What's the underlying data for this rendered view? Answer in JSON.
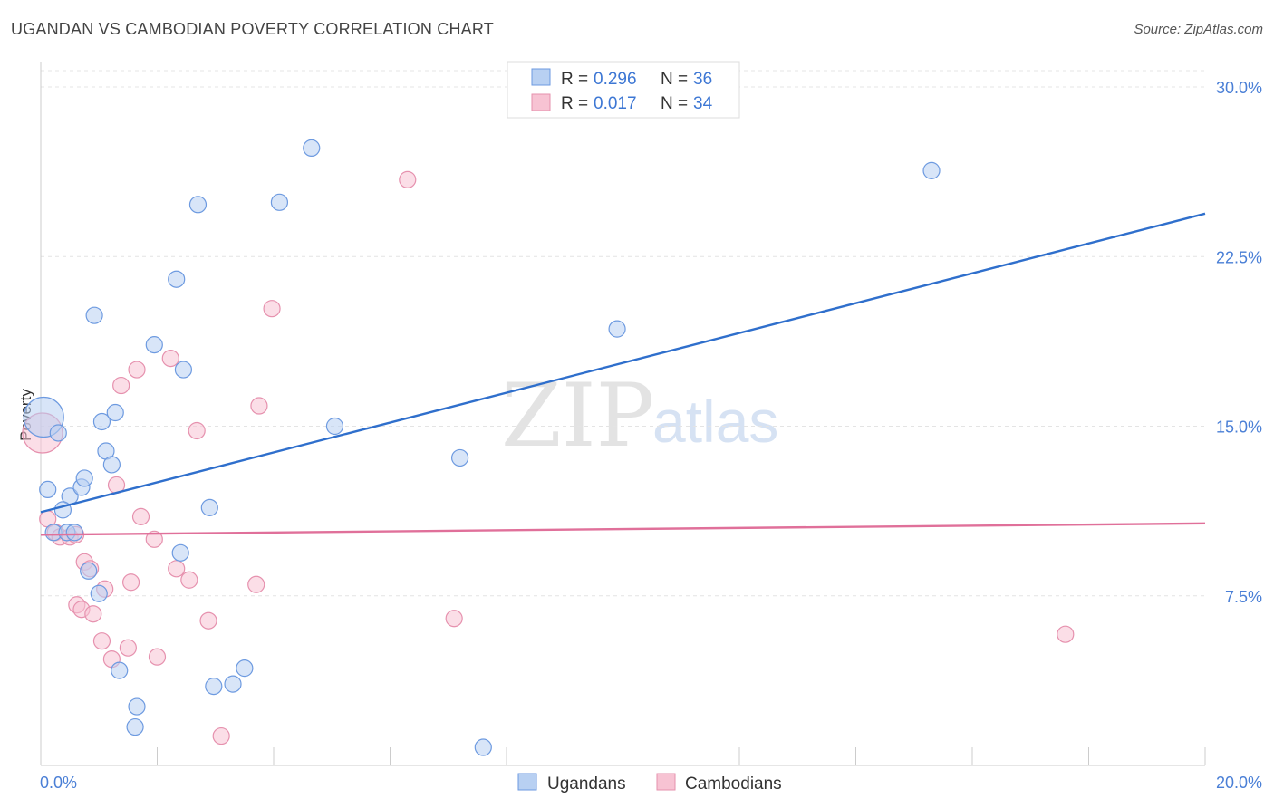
{
  "title": "UGANDAN VS CAMBODIAN POVERTY CORRELATION CHART",
  "source": "Source: ZipAtlas.com",
  "watermark": {
    "zip": "ZIP",
    "atlas": "atlas"
  },
  "colors": {
    "ugandans_fill": "#b8d0f2",
    "ugandans_stroke": "#6d9ae0",
    "ugandans_line": "#2f6fcc",
    "cambodians_fill": "#f7c3d3",
    "cambodians_stroke": "#e691ae",
    "cambodians_line": "#e0709a",
    "tick_text": "#4a7fd6"
  },
  "legend": {
    "ugandans": {
      "r_label": "R =",
      "r_value": "0.296",
      "n_label": "N =",
      "n_value": "36"
    },
    "cambodians": {
      "r_label": "R =",
      "r_value": "0.017",
      "n_label": "N =",
      "n_value": "34"
    }
  },
  "chart_data": {
    "type": "scatter",
    "title": "UGANDAN VS CAMBODIAN POVERTY CORRELATION CHART",
    "xlabel": "",
    "ylabel": "Poverty",
    "xlim": [
      0,
      20
    ],
    "ylim": [
      0,
      30
    ],
    "x_tick_labels": [
      {
        "value": 0,
        "label": "0.0%"
      },
      {
        "value": 20,
        "label": "20.0%"
      }
    ],
    "y_tick_labels": [
      {
        "value": 7.5,
        "label": "7.5%"
      },
      {
        "value": 15,
        "label": "15.0%"
      },
      {
        "value": 22.5,
        "label": "22.5%"
      },
      {
        "value": 30,
        "label": "30.0%"
      }
    ],
    "grid": true,
    "legend_position": "top-center",
    "series": [
      {
        "name": "Ugandans",
        "r": 0.296,
        "n": 36,
        "trend": {
          "x": [
            0,
            20
          ],
          "y": [
            11.2,
            24.4
          ]
        },
        "points": [
          {
            "x": 0.05,
            "y": 15.4,
            "big": true
          },
          {
            "x": 0.3,
            "y": 14.7
          },
          {
            "x": 0.12,
            "y": 12.2
          },
          {
            "x": 0.5,
            "y": 11.9
          },
          {
            "x": 0.38,
            "y": 11.3
          },
          {
            "x": 0.22,
            "y": 10.3
          },
          {
            "x": 0.45,
            "y": 10.3
          },
          {
            "x": 0.58,
            "y": 10.3
          },
          {
            "x": 0.7,
            "y": 12.3
          },
          {
            "x": 0.75,
            "y": 12.7
          },
          {
            "x": 0.82,
            "y": 8.6
          },
          {
            "x": 1.0,
            "y": 7.6
          },
          {
            "x": 1.05,
            "y": 15.2
          },
          {
            "x": 1.12,
            "y": 13.9
          },
          {
            "x": 1.22,
            "y": 13.3
          },
          {
            "x": 1.28,
            "y": 15.6
          },
          {
            "x": 0.92,
            "y": 19.9
          },
          {
            "x": 1.35,
            "y": 4.2
          },
          {
            "x": 1.65,
            "y": 2.6
          },
          {
            "x": 1.62,
            "y": 1.7
          },
          {
            "x": 1.95,
            "y": 18.6
          },
          {
            "x": 2.33,
            "y": 21.5
          },
          {
            "x": 2.45,
            "y": 17.5
          },
          {
            "x": 2.4,
            "y": 9.4
          },
          {
            "x": 2.7,
            "y": 24.8
          },
          {
            "x": 2.9,
            "y": 11.4
          },
          {
            "x": 2.97,
            "y": 3.5
          },
          {
            "x": 3.3,
            "y": 3.6
          },
          {
            "x": 3.5,
            "y": 4.3
          },
          {
            "x": 4.1,
            "y": 24.9
          },
          {
            "x": 4.65,
            "y": 27.3
          },
          {
            "x": 5.05,
            "y": 15.0
          },
          {
            "x": 7.2,
            "y": 13.6
          },
          {
            "x": 7.6,
            "y": 0.8
          },
          {
            "x": 9.9,
            "y": 19.3
          },
          {
            "x": 15.3,
            "y": 26.3
          }
        ]
      },
      {
        "name": "Cambodians",
        "r": 0.017,
        "n": 34,
        "trend": {
          "x": [
            0,
            20
          ],
          "y": [
            10.2,
            10.7
          ]
        },
        "points": [
          {
            "x": 0.03,
            "y": 14.7,
            "big": true
          },
          {
            "x": 0.12,
            "y": 10.9
          },
          {
            "x": 0.25,
            "y": 10.3
          },
          {
            "x": 0.33,
            "y": 10.1
          },
          {
            "x": 0.5,
            "y": 10.1
          },
          {
            "x": 0.6,
            "y": 10.2
          },
          {
            "x": 0.62,
            "y": 7.1
          },
          {
            "x": 0.7,
            "y": 6.9
          },
          {
            "x": 0.75,
            "y": 9.0
          },
          {
            "x": 0.85,
            "y": 8.7
          },
          {
            "x": 0.9,
            "y": 6.7
          },
          {
            "x": 1.05,
            "y": 5.5
          },
          {
            "x": 1.1,
            "y": 7.8
          },
          {
            "x": 1.22,
            "y": 4.7
          },
          {
            "x": 1.3,
            "y": 12.4
          },
          {
            "x": 1.38,
            "y": 16.8
          },
          {
            "x": 1.5,
            "y": 5.2
          },
          {
            "x": 1.55,
            "y": 8.1
          },
          {
            "x": 1.65,
            "y": 17.5
          },
          {
            "x": 1.72,
            "y": 11.0
          },
          {
            "x": 1.95,
            "y": 10.0
          },
          {
            "x": 2.0,
            "y": 4.8
          },
          {
            "x": 2.23,
            "y": 18.0
          },
          {
            "x": 2.33,
            "y": 8.7
          },
          {
            "x": 2.55,
            "y": 8.2
          },
          {
            "x": 2.68,
            "y": 14.8
          },
          {
            "x": 2.88,
            "y": 6.4
          },
          {
            "x": 3.1,
            "y": 1.3
          },
          {
            "x": 3.7,
            "y": 8.0
          },
          {
            "x": 3.75,
            "y": 15.9
          },
          {
            "x": 3.97,
            "y": 20.2
          },
          {
            "x": 6.3,
            "y": 25.9
          },
          {
            "x": 7.1,
            "y": 6.5
          },
          {
            "x": 17.6,
            "y": 5.8
          }
        ]
      }
    ]
  }
}
